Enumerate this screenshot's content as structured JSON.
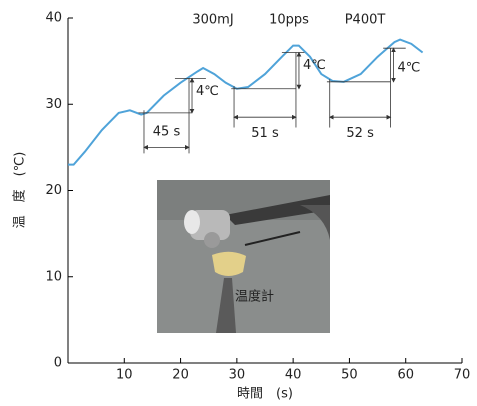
{
  "chart_data": {
    "type": "line",
    "header_labels": [
      "300mJ",
      "10pps",
      "P400T"
    ],
    "xlabel": "時間　(s)",
    "ylabel": "温　度　(℃)",
    "x": [
      0,
      1,
      3,
      6,
      9,
      11,
      13,
      14,
      17,
      20,
      23,
      24,
      26,
      28,
      30,
      32,
      35,
      38,
      40,
      41,
      43,
      45,
      47,
      49,
      52,
      55,
      58,
      59,
      61,
      63
    ],
    "values": [
      23,
      23,
      24.5,
      27,
      29,
      29.3,
      28.8,
      29,
      31,
      32.5,
      33.8,
      34.2,
      33.5,
      32.5,
      31.8,
      32,
      33.5,
      35.5,
      36.8,
      36.8,
      35.5,
      33.5,
      32.7,
      32.6,
      33.5,
      35.5,
      37.2,
      37.5,
      37,
      36
    ],
    "color": "#4fa3d9",
    "xlim": [
      0,
      70
    ],
    "xticks": [
      10,
      20,
      30,
      40,
      50,
      60,
      70
    ],
    "ylim": [
      0,
      40
    ],
    "yticks": [
      0,
      10,
      20,
      30,
      40
    ],
    "interval_labels": [
      "45 s",
      "51 s",
      "52 s"
    ],
    "delta_labels": [
      "4℃",
      "4℃",
      "4℃"
    ],
    "photo_label": "温度計"
  }
}
